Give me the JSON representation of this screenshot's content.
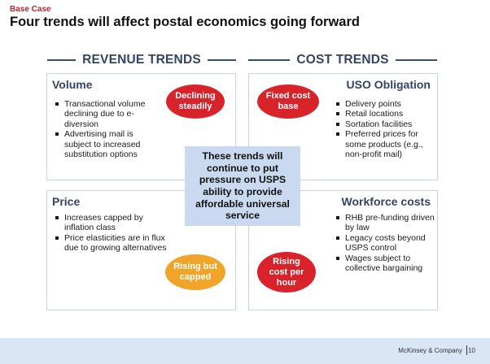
{
  "tag": "Base Case",
  "title": "Four trends will affect postal economics going forward",
  "headers": {
    "revenue": "REVENUE TRENDS",
    "cost": "COST TRENDS"
  },
  "quadrants": {
    "volume": {
      "title": "Volume",
      "bullets": [
        "Transactional volume declining due to e-diversion",
        "Advertising mail is subject to increased substitution options"
      ],
      "callout": "Declining\nsteadily"
    },
    "uso": {
      "title": "USO Obligation",
      "bullets": [
        "Delivery points",
        "Retail locations",
        "Sortation facilities",
        "Preferred prices for some products (e.g., non-profit mail)"
      ],
      "callout": "Fixed cost\nbase"
    },
    "price": {
      "title": "Price",
      "bullets": [
        "Increases capped by inflation class",
        "Price elasticities are in flux due to growing alternatives"
      ],
      "callout": "Rising but\ncapped"
    },
    "workforce": {
      "title": "Workforce costs",
      "bullets": [
        "RHB pre-funding driven by law",
        "Legacy costs beyond USPS control",
        "Wages subject to collective bargaining"
      ],
      "callout": "Rising\ncost per\nhour"
    }
  },
  "center": "These trends will\ncontinue to put\npressure on USPS\nability to provide\naffordable universal\nservice",
  "footer": {
    "source": "McKinsey & Company",
    "page": "10"
  },
  "colors": {
    "accent_red": "#d8232a",
    "accent_orange": "#f0a52a",
    "header_navy": "#334466",
    "center_box": "#c9daf0",
    "footer_band": "#d9e6f6"
  }
}
